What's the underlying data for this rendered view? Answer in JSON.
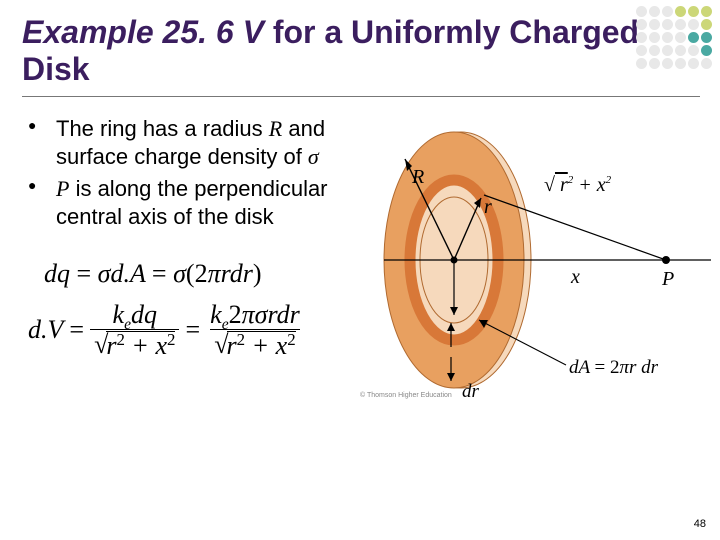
{
  "title": {
    "italic_part": "Example 25. 6 V ",
    "rest": "for a Uniformly Charged Disk",
    "fontsize": 32,
    "color": "#3b1e5f"
  },
  "bullets": [
    {
      "text_pre": "The ring has a radius ",
      "var1": "R",
      "text_mid": " and surface charge density of ",
      "var2": "σ"
    },
    {
      "text_pre": "",
      "var1": "P",
      "text_mid": " is along the perpendicular central axis of the disk",
      "var2": ""
    }
  ],
  "equations": {
    "line1": "dq = σd.A = σ(2πrdr)",
    "line2_lhs": "d.V",
    "frac1_num": "k_e dq",
    "frac2_num": "k_e 2πσrdr",
    "den_expr": "r² + x²"
  },
  "diagram": {
    "outer_color": "#e8a060",
    "inner_color": "#d87838",
    "highlight_color": "#f6d9bc",
    "line_color": "#000000",
    "R_label": "R",
    "r_label": "r",
    "x_label": "x",
    "P_label": "P",
    "hyp_label": "√(r² + x²)",
    "dA_label": "dA = 2πr dr",
    "dr_label": "dr",
    "credit": "© Thomson Higher Education"
  },
  "dotgrid_colors": [
    "#e8e8e8",
    "#e8e8e8",
    "#e8e8e8",
    "#ccd778",
    "#ccd778",
    "#ccd778",
    "#e8e8e8",
    "#e8e8e8",
    "#e8e8e8",
    "#e8e8e8",
    "#e8e8e8",
    "#ccd778",
    "#e8e8e8",
    "#e8e8e8",
    "#e8e8e8",
    "#e8e8e8",
    "#4aa9a2",
    "#4aa9a2",
    "#e8e8e8",
    "#e8e8e8",
    "#e8e8e8",
    "#e8e8e8",
    "#e8e8e8",
    "#4aa9a2",
    "#e8e8e8",
    "#e8e8e8",
    "#e8e8e8",
    "#e8e8e8",
    "#e8e8e8",
    "#e8e8e8"
  ],
  "pagenum": "48"
}
